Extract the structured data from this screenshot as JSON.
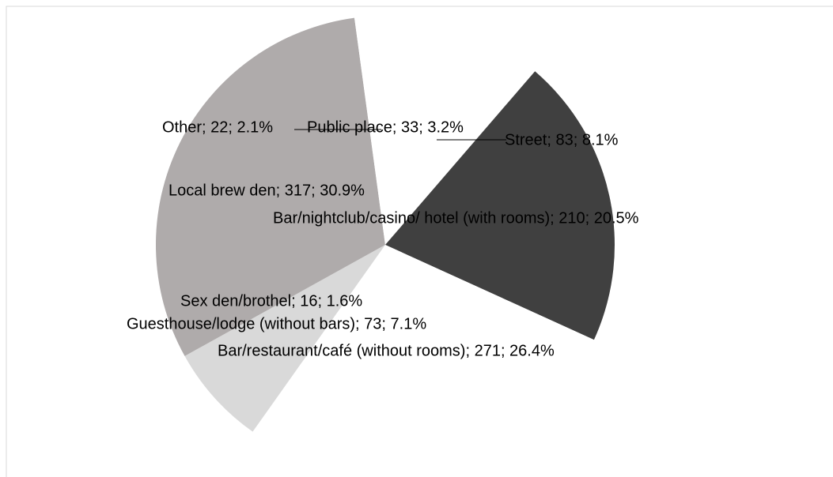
{
  "chart_data": {
    "type": "pie",
    "categories": [
      "Public place",
      "Street",
      "Bar/nightclub/casino/ hotel (with rooms)",
      "Bar/restaurant/café (without rooms)",
      "Sex den/brothel",
      "Guesthouse/lodge (without bars)",
      "Local brew den",
      "Other"
    ],
    "values": [
      33,
      83,
      210,
      271,
      16,
      73,
      317,
      22
    ],
    "value_labels": [
      "Public place; 33; 3.2%",
      "Street; 83; 8.1%",
      "Bar/nightclub/casino/ hotel (with rooms); 210; 20.5%",
      "Bar/restaurant/café (without rooms); 271; 26.4%",
      "Sex den/brothel; 16; 1.6%",
      "Guesthouse/lodge (without bars); 73; 7.1%",
      "Local brew den; 317; 30.9%",
      "Other; 22; 2.1%"
    ],
    "colors": [
      "#ffffff",
      "#ffffff",
      "#404040",
      "#ffffff",
      "#ffffff",
      "#d9d9d9",
      "#afabab",
      "#ffffff"
    ]
  }
}
